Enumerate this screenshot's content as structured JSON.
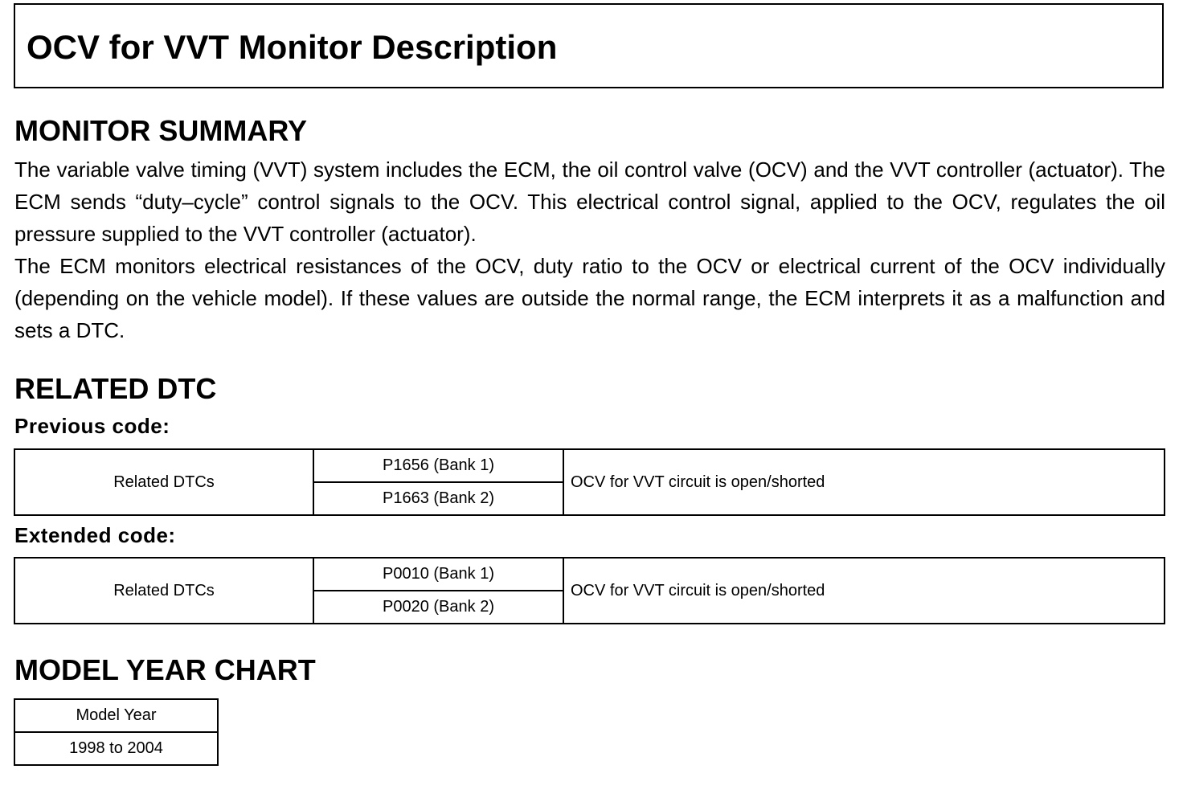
{
  "title": "OCV for VVT Monitor Description",
  "monitor_summary": {
    "heading": "MONITOR SUMMARY",
    "paragraphs": [
      "The variable valve timing (VVT) system includes the ECM, the oil control valve (OCV) and the VVT controller (actuator). The ECM sends “duty–cycle” control signals to the OCV. This electrical control signal, applied to the OCV, regulates the oil pressure supplied to the VVT controller (actuator).",
      "The ECM monitors electrical resistances of the OCV, duty ratio to the OCV or electrical current of the OCV individually (depending on the vehicle model). If these values are outside the normal range, the ECM inter­prets it as a malfunction and sets a DTC."
    ]
  },
  "related_dtc": {
    "heading": "RELATED DTC",
    "previous": {
      "label": "Previous code:",
      "row_label": "Related DTCs",
      "codes": [
        "P1656 (Bank 1)",
        "P1663 (Bank 2)"
      ],
      "description": "OCV for VVT circuit is open/shorted"
    },
    "extended": {
      "label": "Extended code:",
      "row_label": "Related DTCs",
      "codes": [
        "P0010 (Bank 1)",
        "P0020 (Bank 2)"
      ],
      "description": "OCV for VVT circuit is open/shorted"
    }
  },
  "model_year_chart": {
    "heading": "MODEL YEAR CHART",
    "header": "Model Year",
    "value": "1998 to 2004"
  }
}
